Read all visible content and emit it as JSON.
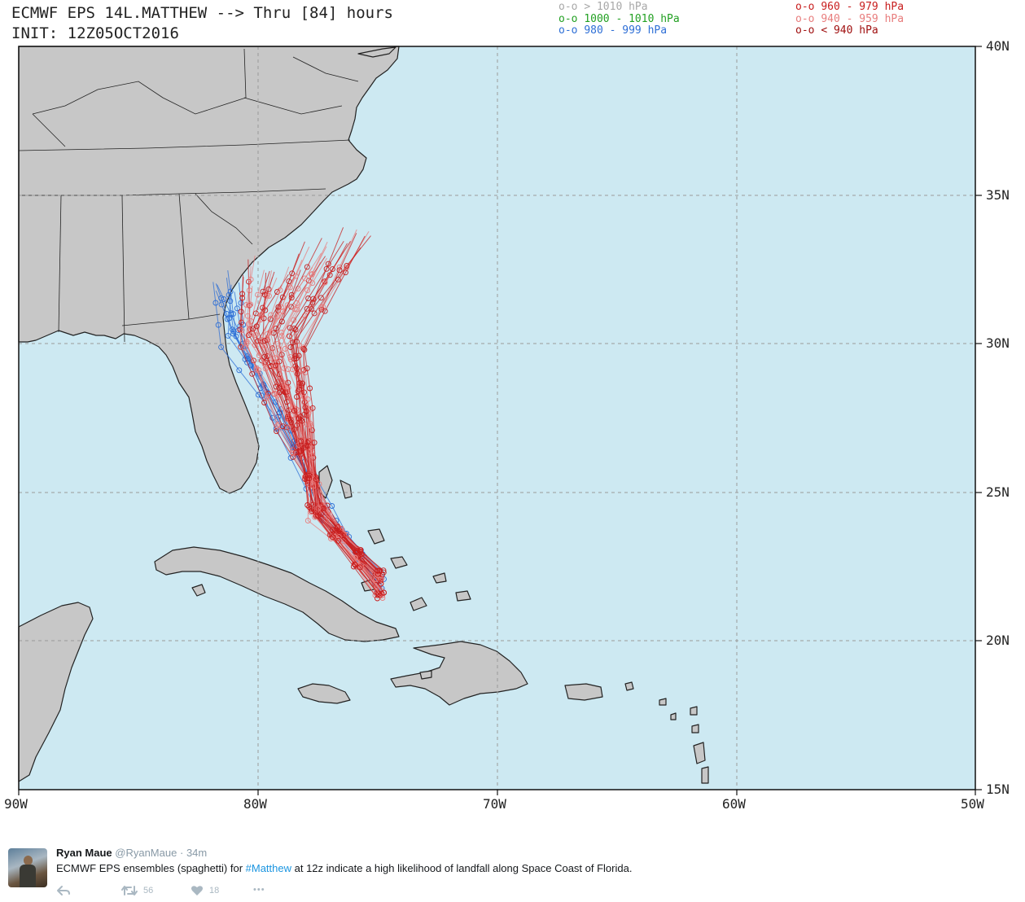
{
  "title": {
    "line1": "ECMWF EPS 14L.MATTHEW --> Thru [84] hours",
    "line2": "INIT: 12Z05OCT2016"
  },
  "legend": [
    {
      "marker": "o-o",
      "label": "> 1010 hPa",
      "color": "#a8a8a8"
    },
    {
      "marker": "o-o",
      "label": "1000 - 1010 hPa",
      "color": "#22a022"
    },
    {
      "marker": "o-o",
      "label": "980 - 999 hPa",
      "color": "#2e6fd6"
    },
    {
      "marker": "o-o",
      "label": "960 - 979 hPa",
      "color": "#c81e1e"
    },
    {
      "marker": "o-o",
      "label": "940 - 959 hPa",
      "color": "#e87d7d"
    },
    {
      "marker": "o-o",
      "label": "< 940 hPa",
      "color": "#a01010"
    }
  ],
  "axes": {
    "lat_labels": [
      "40N",
      "35N",
      "30N",
      "25N",
      "20N",
      "15N"
    ],
    "lon_labels": [
      "90W",
      "80W",
      "70W",
      "60W",
      "50W"
    ]
  },
  "colors": {
    "ocean": "#cde9f2",
    "land": "#c7c7c7",
    "coast": "#222222",
    "grid": "#9a9a9a"
  },
  "tweet": {
    "name": "Ryan Maue",
    "handle": "@RyanMaue",
    "separator": "·",
    "time": "34m",
    "text_before": "ECMWF EPS ensembles (spaghetti) for ",
    "hashtag": "#Matthew",
    "text_after": " at 12z indicate a high likelihood of landfall along Space Coast of Florida.",
    "retweets": "56",
    "likes": "18",
    "more": "•••"
  }
}
